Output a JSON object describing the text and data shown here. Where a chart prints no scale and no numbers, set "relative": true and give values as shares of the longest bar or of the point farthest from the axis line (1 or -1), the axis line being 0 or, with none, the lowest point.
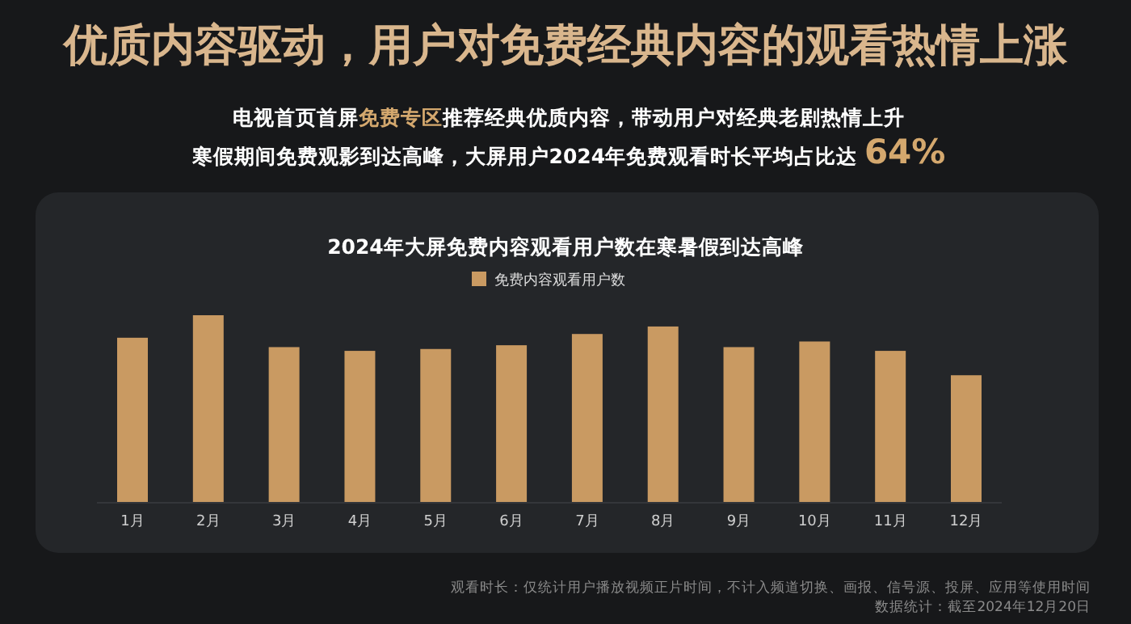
{
  "chart_data": {
    "type": "bar",
    "title": "2024年大屏免费内容观看用户数在寒暑假到达高峰",
    "subtitle": "电视首页首屏**免费专区**推荐经典优质内容，带动用户对经典老剧热情上升",
    "annotations": [
      "优质内容驱动，用户对免费经典内容的观看热情上涨",
      "寒假期间免费观影到达高峰，大屏用户2024年免费观看时长平均占比达 **64%**",
      "观看时长：仅统计用户播放视频正片时间，不计入频道切换、画报、信号源、投屏、应用等使用时间",
      "数据统计：截至2024年12月20日"
    ],
    "categories": [
      "1月",
      "2月",
      "3月",
      "4月",
      "5月",
      "6月",
      "7月",
      "8月",
      "9月",
      "10月",
      "11月",
      "12月"
    ],
    "series": [
      {
        "name": "免费内容观看用户数",
        "color": "#c99a62",
        "values": [
          0.88,
          1,
          0.83,
          0.81,
          0.82,
          0.84,
          0.9,
          0.94,
          0.83,
          0.86,
          0.81,
          0.68
        ]
      }
    ],
    "relative": true,
    "legend": "top"
  }
}
